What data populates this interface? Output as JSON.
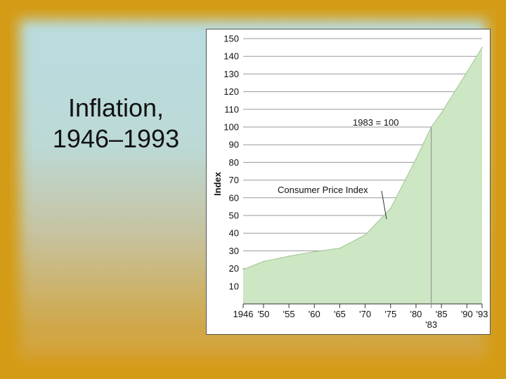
{
  "slide": {
    "title_line1": "Inflation,",
    "title_line2": "1946–1993"
  },
  "colors": {
    "frame": "#d49c16",
    "area_fill": "#cde6c3",
    "area_stroke": "#9fc793",
    "grid": "#9a9a9a"
  },
  "chart_data": {
    "type": "area",
    "title": "",
    "xlabel": "",
    "ylabel": "Index",
    "ylim": [
      0,
      150
    ],
    "xlim": [
      1946,
      1993
    ],
    "grid": true,
    "yticks": [
      10,
      20,
      30,
      40,
      50,
      60,
      70,
      80,
      90,
      100,
      110,
      120,
      130,
      140,
      150
    ],
    "xticks": [
      {
        "value": 1946,
        "label": "1946"
      },
      {
        "value": 1950,
        "label": "'50"
      },
      {
        "value": 1955,
        "label": "'55"
      },
      {
        "value": 1960,
        "label": "'60"
      },
      {
        "value": 1965,
        "label": "'65"
      },
      {
        "value": 1970,
        "label": "'70"
      },
      {
        "value": 1975,
        "label": "'75"
      },
      {
        "value": 1980,
        "label": "'80"
      },
      {
        "value": 1985,
        "label": "'85"
      },
      {
        "value": 1990,
        "label": "'90"
      },
      {
        "value": 1993,
        "label": "'93"
      }
    ],
    "series": [
      {
        "name": "Consumer Price Index",
        "x": [
          1946,
          1950,
          1955,
          1960,
          1965,
          1970,
          1975,
          1980,
          1983,
          1985,
          1990,
          1993
        ],
        "y": [
          19.5,
          24,
          27,
          29.5,
          31.5,
          39,
          54,
          82,
          100,
          108,
          131,
          145
        ]
      }
    ],
    "annotations": [
      {
        "text": "1983 = 100",
        "x": 1983,
        "y": 100
      },
      {
        "text": "Consumer Price Index",
        "x": 1975,
        "y": 54
      }
    ],
    "reference_line": {
      "x": 1983,
      "label": "'83"
    }
  }
}
